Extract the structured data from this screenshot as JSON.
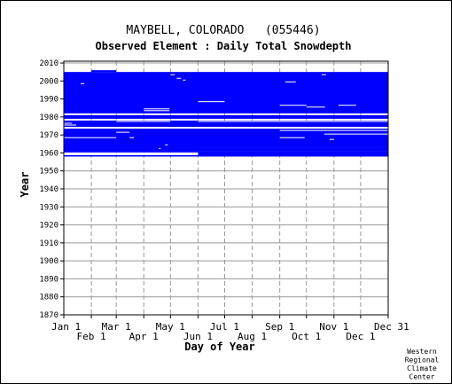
{
  "chart_data": {
    "type": "heatmap",
    "title": "MAYBELL, COLORADO   (055446)",
    "subtitle": "Observed Element : Daily Total Snowdepth",
    "xlabel": "Day of Year",
    "ylabel": "Year",
    "xlim": [
      1,
      366
    ],
    "ylim": [
      1870,
      2011
    ],
    "x_ticks": [
      {
        "label": "Jan 1",
        "day": 1,
        "row": "top"
      },
      {
        "label": "Feb 1",
        "day": 32,
        "row": "bottom"
      },
      {
        "label": "Mar 1",
        "day": 60,
        "row": "top"
      },
      {
        "label": "Apr 1",
        "day": 91,
        "row": "bottom"
      },
      {
        "label": "May 1",
        "day": 121,
        "row": "top"
      },
      {
        "label": "Jun 1",
        "day": 152,
        "row": "bottom"
      },
      {
        "label": "Jul 1",
        "day": 182,
        "row": "top"
      },
      {
        "label": "Aug 1",
        "day": 213,
        "row": "bottom"
      },
      {
        "label": "Sep 1",
        "day": 244,
        "row": "top"
      },
      {
        "label": "Oct 1",
        "day": 274,
        "row": "bottom"
      },
      {
        "label": "Nov 1",
        "day": 305,
        "row": "top"
      },
      {
        "label": "Dec 1",
        "day": 335,
        "row": "bottom"
      },
      {
        "label": "Dec 31",
        "day": 366,
        "row": "top"
      }
    ],
    "y_ticks": [
      "1870",
      "1880",
      "1890",
      "1900",
      "1910",
      "1920",
      "1930",
      "1940",
      "1950",
      "1960",
      "1970",
      "1980",
      "1990",
      "2000",
      "2010"
    ],
    "grid": true,
    "data_color": "#0000ff",
    "coverage_blocks": [
      {
        "y0": 1958,
        "y1": 1961,
        "d0": 1,
        "d1": 366
      },
      {
        "y0": 1961,
        "y1": 1978,
        "d0": 1,
        "d1": 366
      },
      {
        "y0": 1979,
        "y1": 1981,
        "d0": 1,
        "d1": 366
      },
      {
        "y0": 1982,
        "y1": 2005,
        "d0": 1,
        "d1": 366
      },
      {
        "y0": 2005,
        "y1": 2006,
        "d0": 32,
        "d1": 60
      }
    ],
    "missing_segments": [
      {
        "y0": 1958,
        "y1": 1961,
        "d0": 1,
        "d1": 60
      },
      {
        "y0": 1958,
        "y1": 1961,
        "d0": 60,
        "d1": 152
      },
      {
        "y0": 1958,
        "y1": 1961,
        "d0": 1,
        "d1": 2
      },
      {
        "y0": 1968,
        "y1": 1969,
        "d0": 1,
        "d1": 60
      },
      {
        "y0": 1968,
        "y1": 1969,
        "d0": 244,
        "d1": 272
      },
      {
        "y0": 1973,
        "y1": 1975,
        "d0": 1,
        "d1": 366
      },
      {
        "y0": 1975,
        "y1": 1976,
        "d0": 1,
        "d1": 15
      },
      {
        "y0": 1976,
        "y1": 1977,
        "d0": 1,
        "d1": 10
      },
      {
        "y0": 1972,
        "y1": 1973,
        "d0": 244,
        "d1": 335
      },
      {
        "y0": 1970,
        "y1": 1971,
        "d0": 294,
        "d1": 366
      },
      {
        "y0": 1972,
        "y1": 1973,
        "d0": 335,
        "d1": 366
      },
      {
        "y0": 1971,
        "y1": 1972,
        "d0": 60,
        "d1": 75
      },
      {
        "y0": 1977,
        "y1": 1978,
        "d0": 60,
        "d1": 121
      },
      {
        "y0": 1977,
        "y1": 1978,
        "d0": 152,
        "d1": 366
      },
      {
        "y0": 1984,
        "y1": 1985,
        "d0": 91,
        "d1": 120
      },
      {
        "y0": 1983,
        "y1": 1984,
        "d0": 91,
        "d1": 120
      },
      {
        "y0": 1988,
        "y1": 1989,
        "d0": 152,
        "d1": 182
      },
      {
        "y0": 1986,
        "y1": 1987,
        "d0": 244,
        "d1": 274
      },
      {
        "y0": 1985,
        "y1": 1986,
        "d0": 274,
        "d1": 295
      },
      {
        "y0": 1986,
        "y1": 1987,
        "d0": 310,
        "d1": 330
      },
      {
        "y0": 1998,
        "y1": 1999,
        "d0": 20,
        "d1": 24
      },
      {
        "y0": 2003,
        "y1": 2004,
        "d0": 121,
        "d1": 126
      },
      {
        "y0": 2001,
        "y1": 2002,
        "d0": 128,
        "d1": 133
      },
      {
        "y0": 2000,
        "y1": 2001,
        "d0": 135,
        "d1": 138
      },
      {
        "y0": 2003,
        "y1": 2004,
        "d0": 291,
        "d1": 296
      },
      {
        "y0": 1999,
        "y1": 2000,
        "d0": 250,
        "d1": 262
      },
      {
        "y0": 1968,
        "y1": 1969,
        "d0": 75,
        "d1": 80
      },
      {
        "y0": 1962,
        "y1": 1963,
        "d0": 108,
        "d1": 110
      },
      {
        "y0": 1964,
        "y1": 1965,
        "d0": 115,
        "d1": 118
      },
      {
        "y0": 1967,
        "y1": 1968,
        "d0": 300,
        "d1": 305
      }
    ],
    "credit": [
      "Western",
      "Regional",
      "Climate",
      "Center"
    ]
  }
}
